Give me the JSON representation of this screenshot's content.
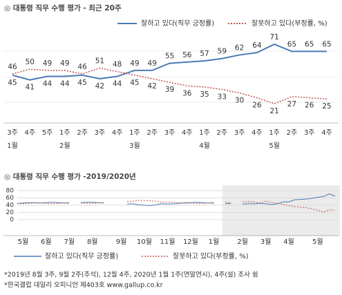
{
  "chart_data": [
    {
      "type": "line",
      "title": "◎  대통령 직무 수행 평가 - 최근 20주",
      "categories": [
        "3주",
        "4주",
        "5주",
        "1주",
        "2주",
        "3주",
        "4주",
        "1주",
        "2주",
        "3주",
        "4주",
        "1주",
        "2주",
        "3주",
        "4주",
        "1주",
        "2주",
        "3주",
        "4주"
      ],
      "month_labels": [
        {
          "value": 0,
          "label": "1월"
        },
        {
          "value": 3,
          "label": "2월"
        },
        {
          "value": 7,
          "label": "3월"
        },
        {
          "value": 11,
          "label": "4월"
        },
        {
          "value": 15,
          "label": "5월"
        }
      ],
      "ylim": [
        10,
        80
      ],
      "series": [
        {
          "name": "잘하고 있다(직무 긍정률)",
          "color": "#4a7ab5",
          "style": "solid",
          "values": [
            45,
            41,
            44,
            44,
            45,
            42,
            44,
            49,
            49,
            55,
            56,
            57,
            59,
            62,
            64,
            71,
            65,
            65,
            65
          ]
        },
        {
          "name": "잘못하고 있다(부정률, %)",
          "color": "#c0504d",
          "style": "dotted",
          "values": [
            46,
            50,
            49,
            49,
            46,
            51,
            48,
            45,
            42,
            39,
            36,
            35,
            33,
            30,
            26,
            21,
            27,
            26,
            25
          ]
        }
      ]
    },
    {
      "type": "line",
      "title": "◎  대통령 직무 수행 평가 -2019/2020년",
      "xlim": [
        0,
        55
      ],
      "xticks": [
        {
          "value": 1,
          "label": "5월"
        },
        {
          "value": 5,
          "label": "6월"
        },
        {
          "value": 9,
          "label": "7월"
        },
        {
          "value": 13,
          "label": "8월"
        },
        {
          "value": 18,
          "label": "9월"
        },
        {
          "value": 22,
          "label": "10월"
        },
        {
          "value": 26,
          "label": "11월"
        },
        {
          "value": 30,
          "label": "12월"
        },
        {
          "value": 34,
          "label": "1월"
        },
        {
          "value": 39,
          "label": "2월"
        },
        {
          "value": 43,
          "label": "3월"
        },
        {
          "value": 47,
          "label": "4월"
        },
        {
          "value": 52,
          "label": "5월"
        }
      ],
      "ylim": [
        0,
        80
      ],
      "yticks": [
        0,
        20,
        40,
        60,
        80
      ],
      "grid": true,
      "series": [
        {
          "name": "잘하고 있다(직무 긍정률)",
          "color": "#4a7ab5",
          "style": "solid",
          "values": [
            45,
            46,
            47,
            47,
            46,
            47,
            48,
            47,
            46,
            47,
            null,
            47,
            48,
            48,
            47,
            46,
            null,
            45,
            null,
            43,
            44,
            41,
            40,
            39,
            41,
            44,
            43,
            44,
            45,
            47,
            47,
            48,
            47,
            46,
            47,
            null,
            44,
            45,
            null,
            43,
            44,
            44,
            45,
            44,
            42,
            44,
            49,
            49,
            55,
            56,
            57,
            59,
            62,
            64,
            71,
            65
          ]
        },
        {
          "name": "잘못하고 있다(부정률, %)",
          "color": "#c0504d",
          "style": "dotted",
          "values": [
            45,
            44,
            45,
            46,
            46,
            45,
            44,
            45,
            46,
            45,
            null,
            46,
            45,
            45,
            46,
            47,
            null,
            48,
            null,
            50,
            51,
            53,
            53,
            52,
            51,
            48,
            49,
            48,
            47,
            45,
            46,
            45,
            45,
            46,
            45,
            null,
            48,
            47,
            null,
            49,
            50,
            49,
            46,
            51,
            48,
            45,
            42,
            39,
            36,
            35,
            33,
            30,
            26,
            21,
            27,
            26
          ]
        }
      ]
    }
  ],
  "footnotes": [
    "*2019년 8월 3주, 9월 2주(추석), 12월 4주, 2020년 1월 1주(연말연시), 4주(설) 조사 쉼",
    "*한국갤럽 데일리 오피니언 제403호 www.gallup.co.kr"
  ]
}
